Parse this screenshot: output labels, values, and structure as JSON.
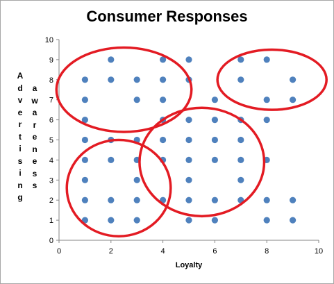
{
  "chart_data": {
    "type": "scatter",
    "title": "Consumer Responses",
    "xlabel": "Loyalty",
    "ylabel_line1": "Advertising",
    "ylabel_line2": "awareness",
    "xlim": [
      0,
      10
    ],
    "ylim": [
      0,
      10
    ],
    "xticks": [
      0,
      2,
      4,
      6,
      8,
      10
    ],
    "yticks": [
      0,
      1,
      2,
      3,
      4,
      5,
      6,
      7,
      8,
      9,
      10
    ],
    "grid": false,
    "legend": "none",
    "series_color": "#4f81bd",
    "points": [
      [
        2,
        9
      ],
      [
        4,
        9
      ],
      [
        5,
        9
      ],
      [
        7,
        9
      ],
      [
        8,
        9
      ],
      [
        1,
        8
      ],
      [
        2,
        8
      ],
      [
        3,
        8
      ],
      [
        4,
        8
      ],
      [
        5,
        8
      ],
      [
        7,
        8
      ],
      [
        9,
        8
      ],
      [
        1,
        7
      ],
      [
        3,
        7
      ],
      [
        4,
        7
      ],
      [
        6,
        7
      ],
      [
        8,
        7
      ],
      [
        9,
        7
      ],
      [
        1,
        6
      ],
      [
        4,
        6
      ],
      [
        5,
        6
      ],
      [
        6,
        6
      ],
      [
        7,
        6
      ],
      [
        8,
        6
      ],
      [
        1,
        5
      ],
      [
        2,
        5
      ],
      [
        3,
        5
      ],
      [
        4,
        5
      ],
      [
        5,
        5
      ],
      [
        6,
        5
      ],
      [
        7,
        5
      ],
      [
        1,
        4
      ],
      [
        2,
        4
      ],
      [
        3,
        4
      ],
      [
        4,
        4
      ],
      [
        5,
        4
      ],
      [
        6,
        4
      ],
      [
        7,
        4
      ],
      [
        8,
        4
      ],
      [
        1,
        3
      ],
      [
        3,
        3
      ],
      [
        5,
        3
      ],
      [
        7,
        3
      ],
      [
        1,
        2
      ],
      [
        2,
        2
      ],
      [
        3,
        2
      ],
      [
        4,
        2
      ],
      [
        5,
        2
      ],
      [
        6,
        2
      ],
      [
        7,
        2
      ],
      [
        8,
        2
      ],
      [
        9,
        2
      ],
      [
        1,
        1
      ],
      [
        2,
        1
      ],
      [
        3,
        1
      ],
      [
        5,
        1
      ],
      [
        6,
        1
      ],
      [
        8,
        1
      ],
      [
        9,
        1
      ]
    ],
    "annotations": {
      "type": "ellipse",
      "color": "#e31b23",
      "regions": [
        {
          "center": [
            2.5,
            7.5
          ],
          "rx": 2.6,
          "ry": 2.1
        },
        {
          "center": [
            8.2,
            8.0
          ],
          "rx": 2.1,
          "ry": 1.5
        },
        {
          "center": [
            2.3,
            2.6
          ],
          "rx": 2.0,
          "ry": 2.4
        },
        {
          "center": [
            5.5,
            3.9
          ],
          "rx": 2.4,
          "ry": 2.7
        }
      ]
    }
  }
}
